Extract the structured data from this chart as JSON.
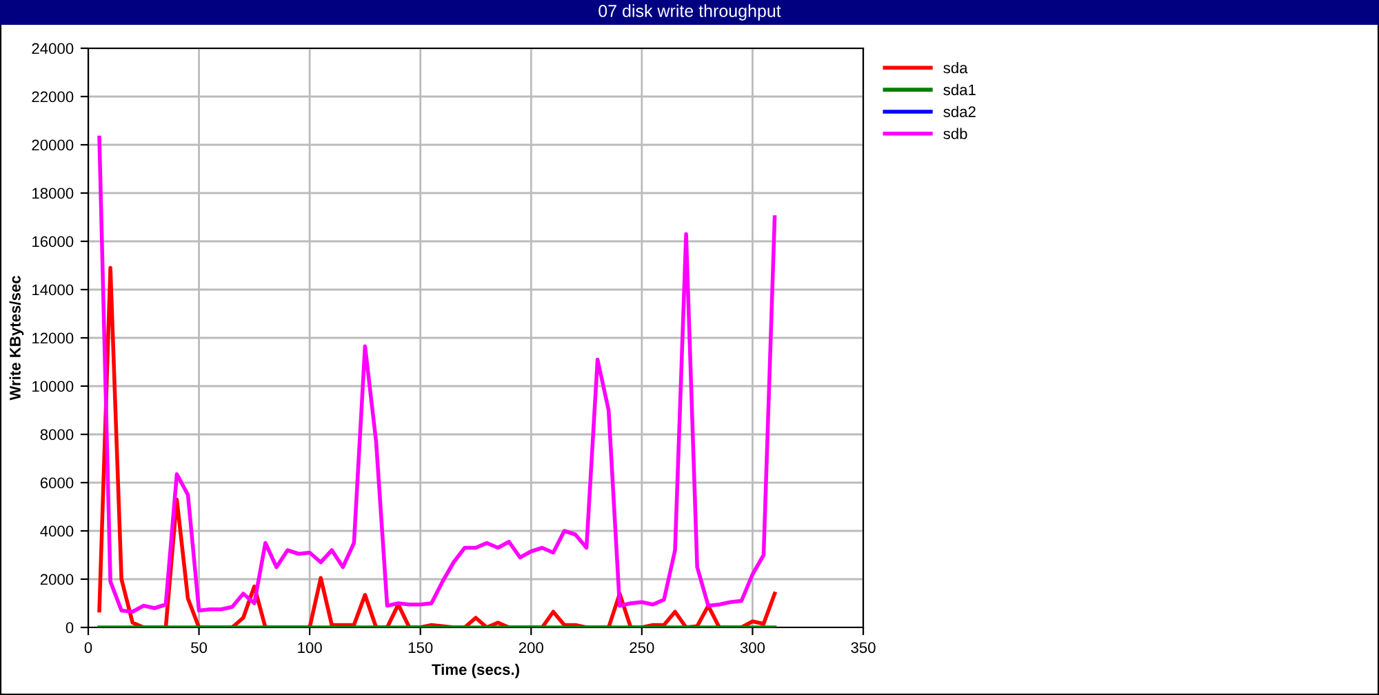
{
  "chart_data": {
    "type": "line",
    "title": "07 disk write throughput",
    "xlabel": "Time (secs.)",
    "ylabel": "Write KBytes/sec",
    "x": [
      5,
      10,
      15,
      20,
      25,
      30,
      35,
      40,
      45,
      50,
      55,
      60,
      65,
      70,
      75,
      80,
      85,
      90,
      95,
      100,
      105,
      110,
      115,
      120,
      125,
      130,
      135,
      140,
      145,
      150,
      155,
      160,
      165,
      170,
      175,
      180,
      185,
      190,
      195,
      200,
      205,
      210,
      215,
      220,
      225,
      230,
      235,
      240,
      245,
      250,
      255,
      260,
      265,
      270,
      275,
      280,
      285,
      290,
      295,
      300,
      305,
      310
    ],
    "series": [
      {
        "name": "sda",
        "color": "#ff0000",
        "values": [
          700,
          14900,
          2000,
          200,
          0,
          0,
          0,
          5300,
          1200,
          0,
          0,
          0,
          0,
          400,
          1700,
          0,
          0,
          0,
          0,
          0,
          2050,
          100,
          100,
          100,
          1350,
          0,
          0,
          950,
          0,
          0,
          100,
          50,
          0,
          0,
          400,
          0,
          200,
          0,
          0,
          0,
          0,
          650,
          100,
          100,
          0,
          0,
          0,
          1400,
          0,
          0,
          100,
          100,
          650,
          0,
          50,
          900,
          0,
          0,
          0,
          250,
          150,
          1400
        ]
      },
      {
        "name": "sda1",
        "color": "#008000",
        "values": [
          0,
          0,
          0,
          0,
          0,
          0,
          0,
          0,
          0,
          0,
          0,
          0,
          0,
          0,
          0,
          0,
          0,
          0,
          0,
          0,
          0,
          0,
          0,
          0,
          0,
          0,
          0,
          0,
          0,
          0,
          0,
          0,
          0,
          0,
          0,
          0,
          0,
          0,
          0,
          0,
          0,
          0,
          0,
          0,
          0,
          0,
          0,
          0,
          0,
          0,
          0,
          0,
          0,
          0,
          0,
          0,
          0,
          0,
          0,
          0,
          0,
          0
        ]
      },
      {
        "name": "sda2",
        "color": "#0000ff",
        "values": [
          null,
          null,
          null,
          null,
          null,
          null,
          null,
          null,
          null,
          null,
          null,
          null,
          null,
          null,
          null,
          null,
          null,
          null,
          null,
          null,
          null,
          null,
          null,
          null,
          null,
          null,
          null,
          null,
          null,
          null,
          null,
          null,
          null,
          null,
          null,
          null,
          null,
          null,
          null,
          null,
          null,
          null,
          null,
          null,
          null,
          null,
          null,
          null,
          null,
          null,
          null,
          null,
          null,
          null,
          null,
          null,
          null,
          null,
          null,
          null,
          null,
          null
        ]
      },
      {
        "name": "sdb",
        "color": "#ff00ff",
        "values": [
          20300,
          1900,
          700,
          650,
          900,
          800,
          950,
          6350,
          5500,
          700,
          750,
          750,
          850,
          1400,
          1000,
          3500,
          2500,
          3200,
          3050,
          3100,
          2700,
          3200,
          2500,
          3500,
          11650,
          7700,
          900,
          1000,
          950,
          950,
          1000,
          1900,
          2700,
          3300,
          3300,
          3500,
          3300,
          3550,
          2900,
          3150,
          3300,
          3100,
          4000,
          3850,
          3300,
          11100,
          9000,
          900,
          1000,
          1050,
          950,
          1150,
          3200,
          16300,
          2500,
          900,
          950,
          1050,
          1100,
          2200,
          3000,
          17000
        ]
      }
    ],
    "xlim": [
      0,
      350
    ],
    "xticks": [
      0,
      50,
      100,
      150,
      200,
      250,
      300,
      350
    ],
    "ylim": [
      0,
      24000
    ],
    "yticks": [
      0,
      2000,
      4000,
      6000,
      8000,
      10000,
      12000,
      14000,
      16000,
      18000,
      20000,
      22000,
      24000
    ],
    "grid": true,
    "legend": "top right",
    "marker": "none",
    "line_style": "solid"
  }
}
